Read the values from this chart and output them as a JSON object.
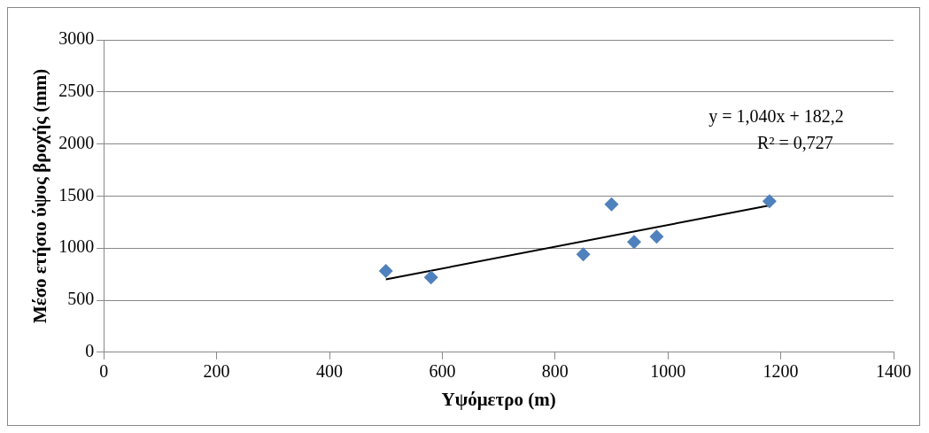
{
  "chart_data": {
    "type": "scatter",
    "xlabel": "Υψόμετρο (m)",
    "ylabel": "Μέσο ετήσιο ύψος βροχής (mm)",
    "x": [
      500,
      580,
      850,
      900,
      940,
      980,
      1180
    ],
    "series": [
      {
        "type": "scatter",
        "color": "#4f81bd",
        "values": [
          780,
          720,
          940,
          1420,
          1060,
          1110,
          1450
        ]
      },
      {
        "type": "line",
        "color": "#000000",
        "x": [
          500,
          1180
        ],
        "values": [
          700,
          1410
        ],
        "marker": "none"
      }
    ],
    "marker": "diamond",
    "xlim": [
      0,
      1400
    ],
    "xticks": [
      0,
      200,
      400,
      600,
      800,
      1000,
      1200,
      1400
    ],
    "ylim": [
      0,
      3000
    ],
    "yticks": [
      0,
      500,
      1000,
      1500,
      2000,
      2500,
      3000
    ],
    "grid": "y",
    "legend": false,
    "annotations": [
      "y = 1,040x + 182,2",
      "R² = 0,727"
    ]
  }
}
